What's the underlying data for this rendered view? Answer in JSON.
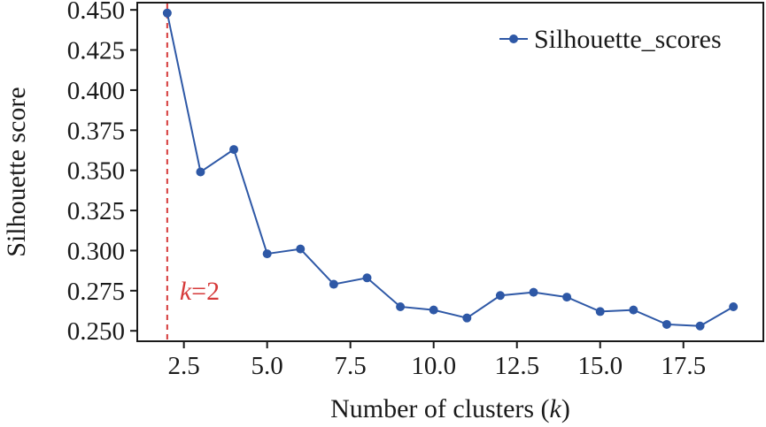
{
  "chart_data": {
    "type": "line",
    "x": [
      2,
      3,
      4,
      5,
      6,
      7,
      8,
      9,
      10,
      11,
      12,
      13,
      14,
      15,
      16,
      17,
      18,
      19
    ],
    "series": [
      {
        "name": "Silhouette_scores",
        "values": [
          0.448,
          0.349,
          0.363,
          0.298,
          0.301,
          0.279,
          0.283,
          0.265,
          0.263,
          0.258,
          0.272,
          0.274,
          0.271,
          0.262,
          0.263,
          0.254,
          0.253,
          0.265
        ],
        "color": "#2e58a6"
      }
    ],
    "xlabel_prefix": "Number of clusters (",
    "xlabel_var": "k",
    "xlabel_suffix": ")",
    "ylabel": "Silhouette score",
    "xticks": [
      2.5,
      5.0,
      7.5,
      10.0,
      12.5,
      15.0,
      17.5
    ],
    "xtick_labels": [
      "2.5",
      "5.0",
      "7.5",
      "10.0",
      "12.5",
      "15.0",
      "17.5"
    ],
    "yticks": [
      0.25,
      0.275,
      0.3,
      0.325,
      0.35,
      0.375,
      0.4,
      0.425,
      0.45
    ],
    "ytick_labels": [
      "0.250",
      "0.275",
      "0.300",
      "0.325",
      "0.350",
      "0.375",
      "0.400",
      "0.425",
      "0.450"
    ],
    "xlim": [
      1.1,
      19.9
    ],
    "ylim": [
      0.2435,
      0.4545
    ],
    "grid": false,
    "legend_position": "top-right",
    "annotation": {
      "vline_x": 2,
      "var": "k",
      "equals": "=2",
      "color": "#d63a3a"
    }
  }
}
